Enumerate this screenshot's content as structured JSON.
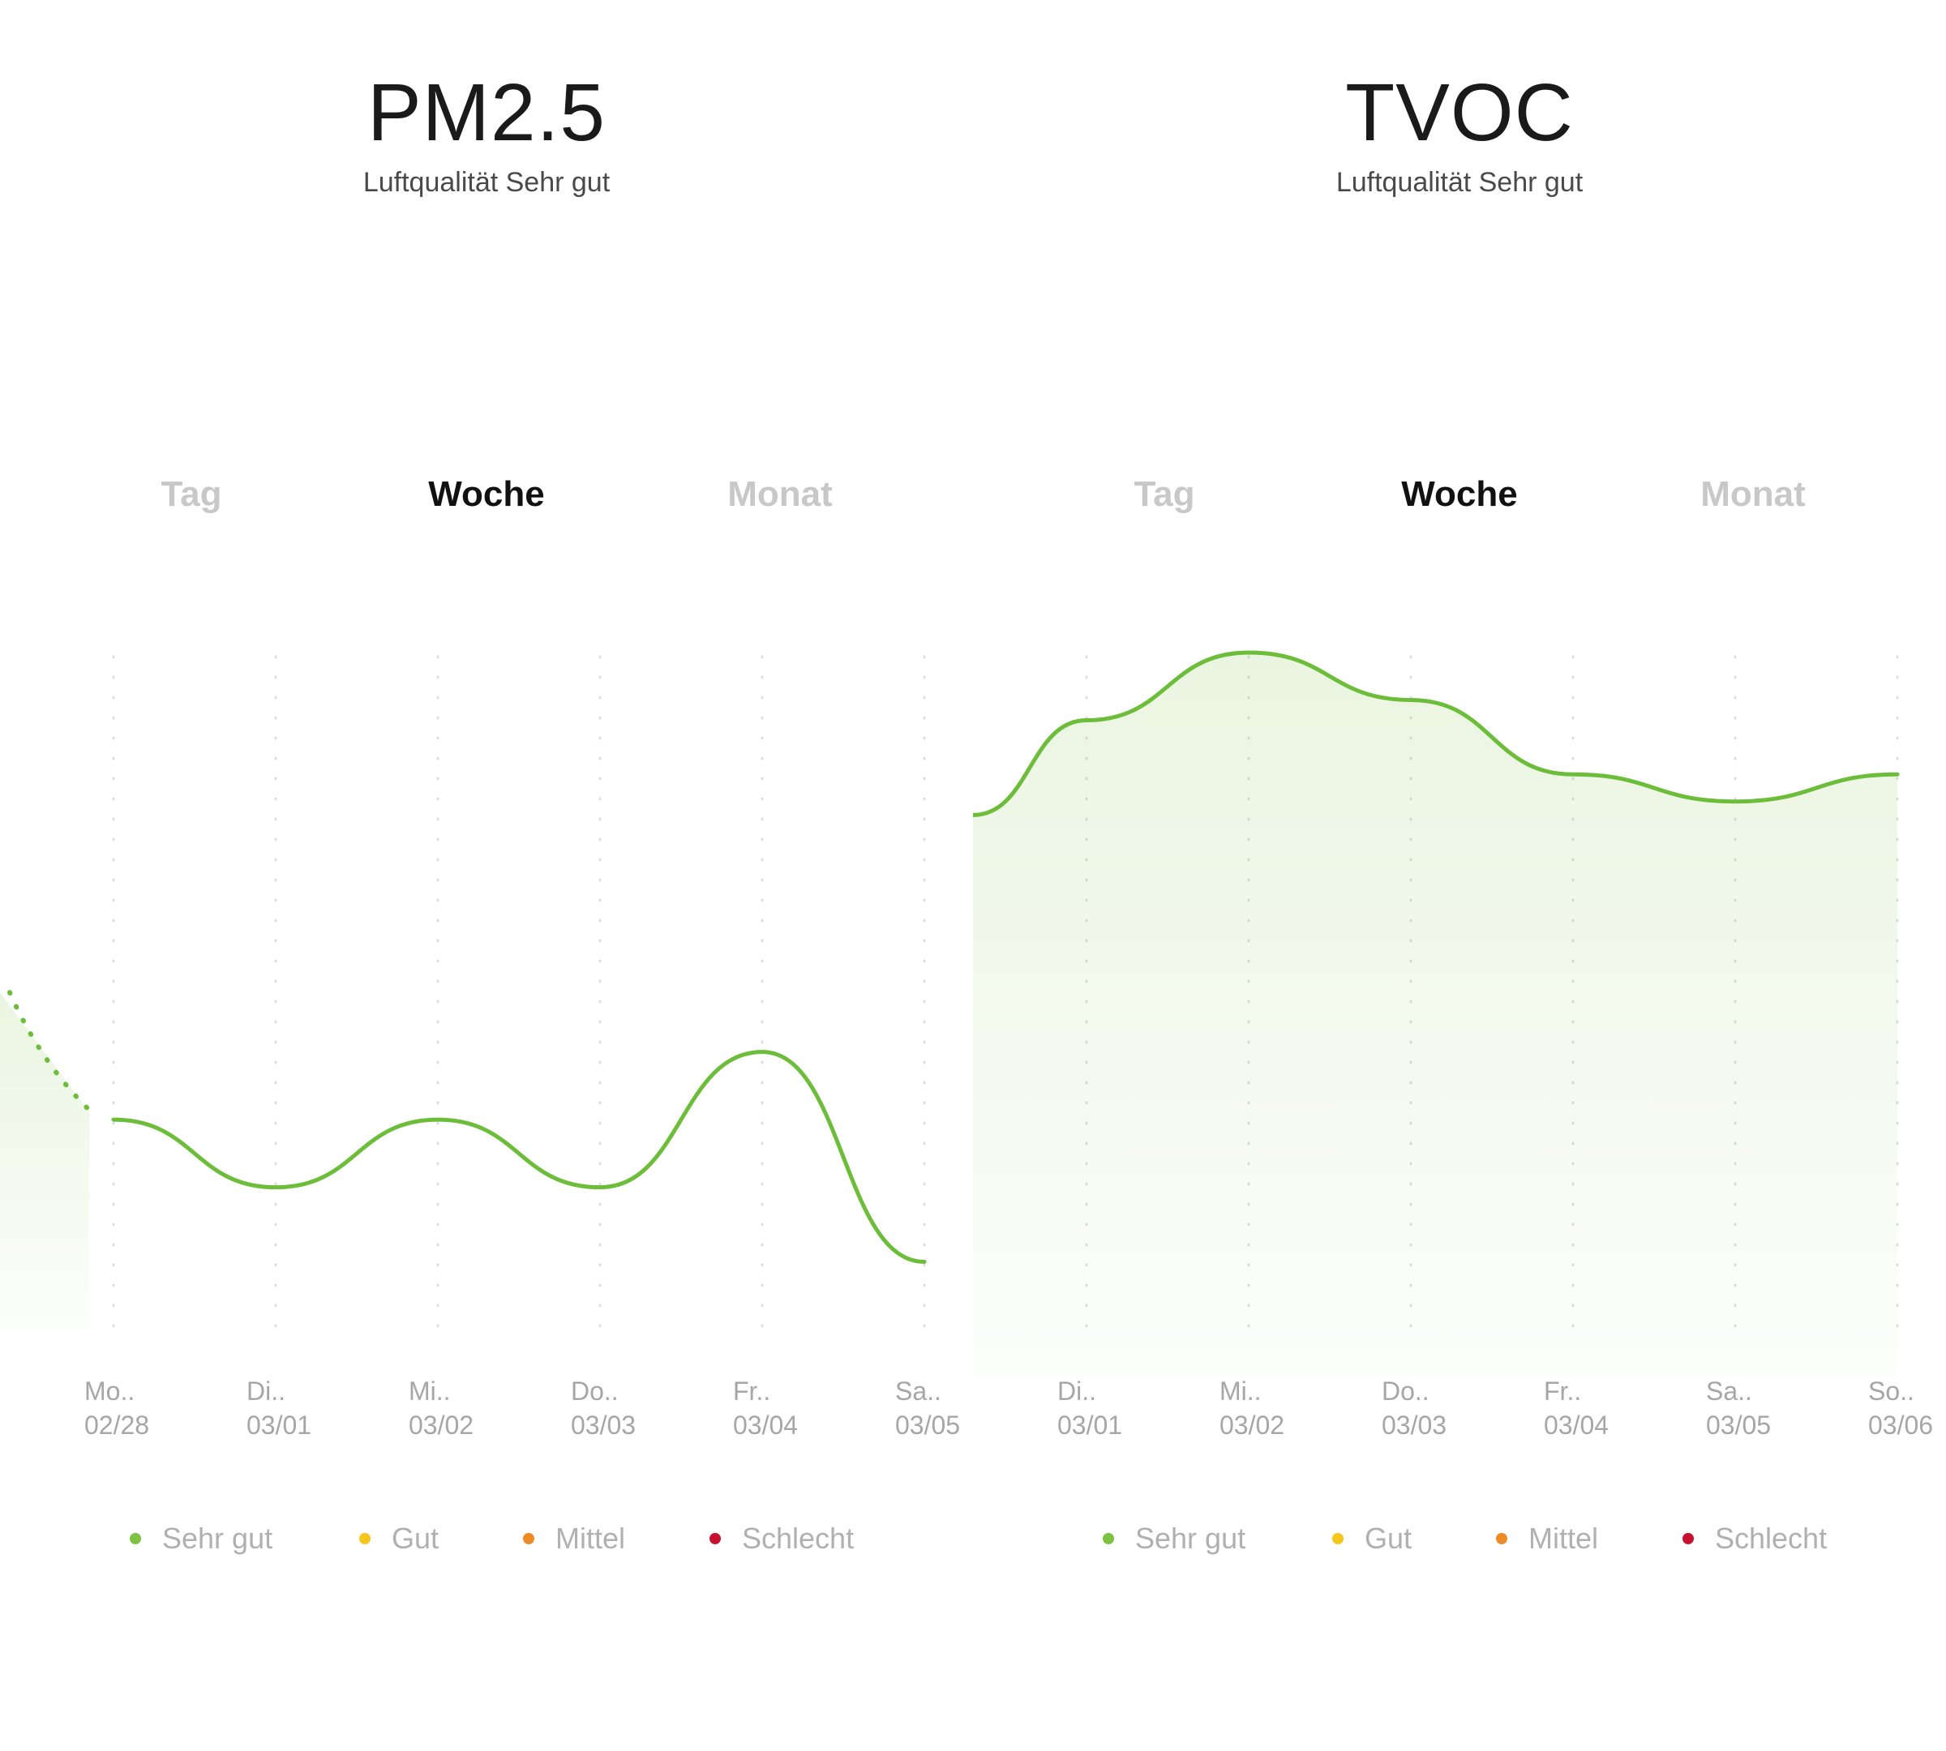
{
  "colors": {
    "sehr_gut": "#7dc242",
    "gut": "#f5c518",
    "mittel": "#f08a24",
    "schlecht": "#c8102e",
    "line": "#6cbd3a"
  },
  "panels": [
    {
      "id": "pm25",
      "title": "PM2.5",
      "subtitle": "Luftqualität Sehr gut",
      "tabs": [
        {
          "label": "Tag",
          "active": false
        },
        {
          "label": "Woche",
          "active": true
        },
        {
          "label": "Monat",
          "active": false
        }
      ],
      "legend": [
        {
          "label": "Sehr gut",
          "color": "#7dc242"
        },
        {
          "label": "Gut",
          "color": "#f5c518"
        },
        {
          "label": "Mittel",
          "color": "#f08a24"
        },
        {
          "label": "Schlecht",
          "color": "#c8102e"
        }
      ]
    },
    {
      "id": "tvoc",
      "title": "TVOC",
      "subtitle": "Luftqualität Sehr gut",
      "tabs": [
        {
          "label": "Tag",
          "active": false
        },
        {
          "label": "Woche",
          "active": true
        },
        {
          "label": "Monat",
          "active": false
        }
      ],
      "legend": [
        {
          "label": "Sehr gut",
          "color": "#7dc242"
        },
        {
          "label": "Gut",
          "color": "#f5c518"
        },
        {
          "label": "Mittel",
          "color": "#f08a24"
        },
        {
          "label": "Schlecht",
          "color": "#c8102e"
        }
      ]
    }
  ],
  "chart_data": [
    {
      "type": "line",
      "title": "PM2.5",
      "categories": [
        {
          "day": "Mo..",
          "date": "02/28"
        },
        {
          "day": "Di..",
          "date": "03/01"
        },
        {
          "day": "Mi..",
          "date": "03/02"
        },
        {
          "day": "Do..",
          "date": "03/03"
        },
        {
          "day": "Fr..",
          "date": "03/04"
        },
        {
          "day": "Sa..",
          "date": "03/05"
        }
      ],
      "values": [
        0.31,
        0.21,
        0.31,
        0.21,
        0.41,
        0.1
      ],
      "previous_value": 0.45,
      "ylim": [
        0,
        1
      ],
      "grid": "vertical-dotted",
      "fill": false
    },
    {
      "type": "area",
      "title": "TVOC",
      "categories": [
        {
          "day": "Di..",
          "date": "03/01"
        },
        {
          "day": "Mi..",
          "date": "03/02"
        },
        {
          "day": "Do..",
          "date": "03/03"
        },
        {
          "day": "Fr..",
          "date": "03/04"
        },
        {
          "day": "Sa..",
          "date": "03/05"
        },
        {
          "day": "So..",
          "date": "03/06"
        }
      ],
      "values": [
        0.9,
        1.0,
        0.93,
        0.82,
        0.78,
        0.82
      ],
      "previous_value": 0.76,
      "ylim": [
        0,
        1
      ],
      "grid": "vertical-dotted",
      "fill": true
    }
  ]
}
